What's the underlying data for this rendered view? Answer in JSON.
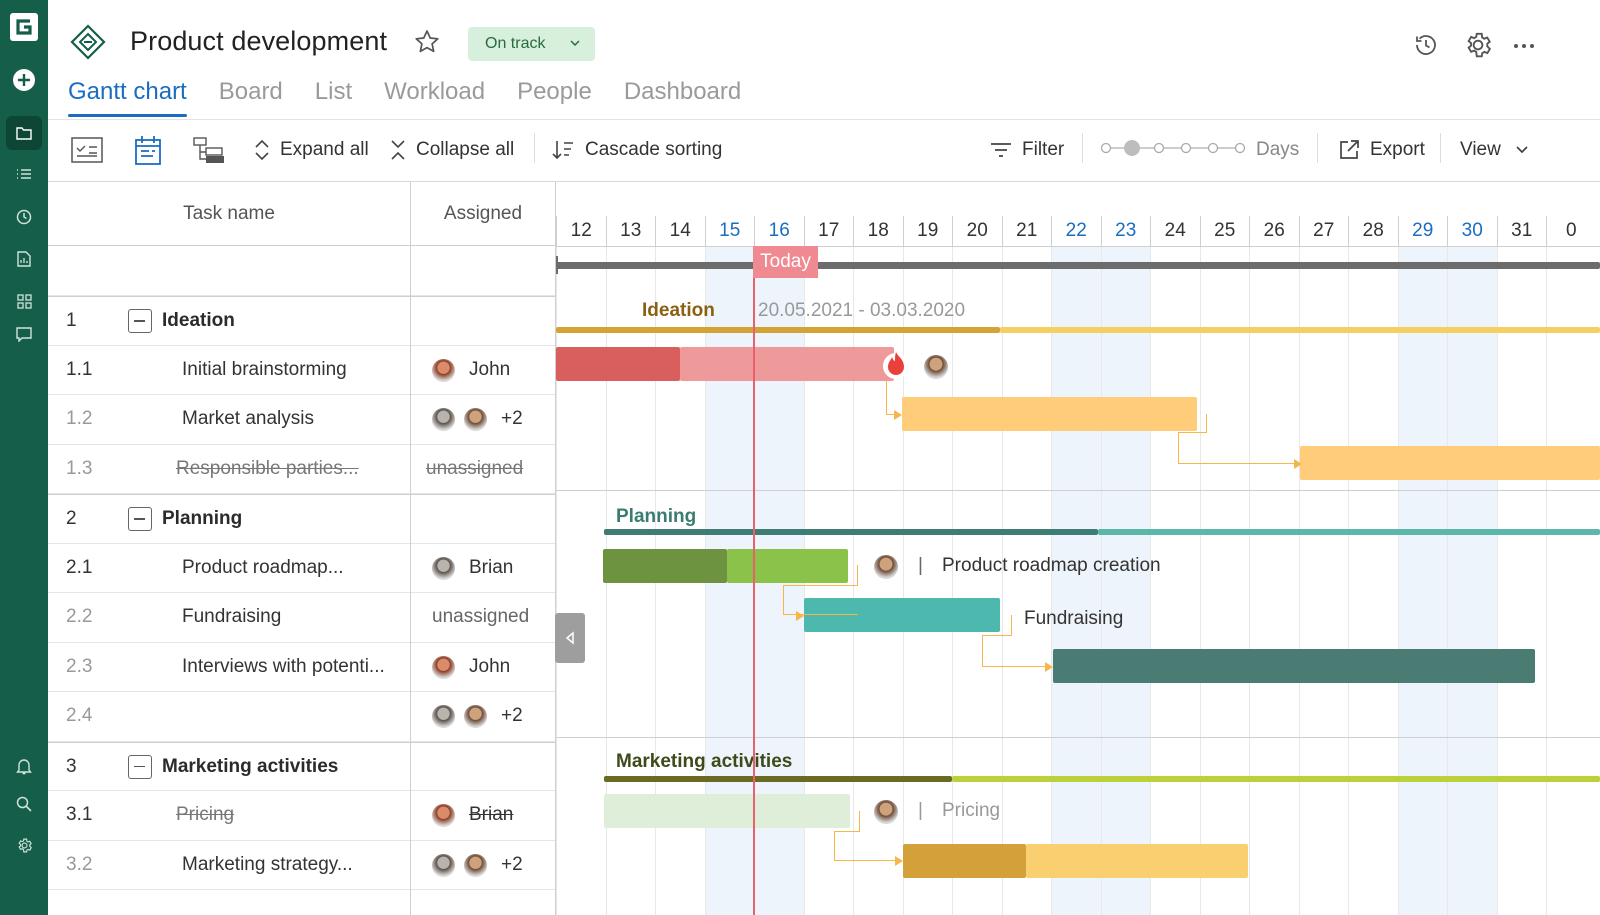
{
  "app": {
    "logo_letter": "G"
  },
  "header": {
    "title": "Product development",
    "status": "On track",
    "tabs": [
      {
        "label": "Gantt chart",
        "active": true
      },
      {
        "label": "Board"
      },
      {
        "label": "List"
      },
      {
        "label": "Workload"
      },
      {
        "label": "People"
      },
      {
        "label": "Dashboard"
      }
    ]
  },
  "toolbar": {
    "expand_all": "Expand all",
    "collapse_all": "Collapse all",
    "cascade_sorting": "Cascade sorting",
    "filter": "Filter",
    "zoom_label": "Days",
    "export": "Export",
    "view": "View"
  },
  "grid": {
    "col_task": "Task name",
    "col_assigned": "Assigned",
    "rows": [
      {
        "num": "1",
        "name": "Ideation",
        "group": true,
        "assigned": ""
      },
      {
        "num": "1.1",
        "name": "Initial brainstorming",
        "assigned": "John",
        "avatars": 1
      },
      {
        "num": "1.2",
        "name": "Market analysis",
        "assigned": "+2",
        "avatars": 2
      },
      {
        "num": "1.3",
        "name": "Responsible parties...",
        "assigned": "unassigned",
        "strike": true
      },
      {
        "num": "2",
        "name": "Planning",
        "group": true,
        "assigned": ""
      },
      {
        "num": "2.1",
        "name": "Product roadmap...",
        "assigned": "Brian",
        "avatars": 1
      },
      {
        "num": "2.2",
        "name": "Fundraising",
        "assigned": "unassigned"
      },
      {
        "num": "2.3",
        "name": "Interviews with potenti...",
        "assigned": "John",
        "avatars": 1
      },
      {
        "num": "2.4",
        "name": "",
        "assigned": "+2",
        "avatars": 2
      },
      {
        "num": "3",
        "name": "Marketing activities",
        "group": true,
        "assigned": ""
      },
      {
        "num": "3.1",
        "name": "Pricing",
        "assigned": "Brian",
        "avatars": 1,
        "strike": true
      },
      {
        "num": "3.2",
        "name": "Marketing strategy...",
        "assigned": "+2",
        "avatars": 2
      }
    ]
  },
  "timeline": {
    "days": [
      "12",
      "13",
      "14",
      "15",
      "16",
      "17",
      "18",
      "19",
      "20",
      "21",
      "22",
      "23",
      "24",
      "25",
      "26",
      "27",
      "28",
      "29",
      "30",
      "31",
      "0"
    ],
    "weekend_days": [
      "15",
      "16",
      "22",
      "23",
      "29",
      "30"
    ],
    "today_label": "Today",
    "ideation_label": "Ideation",
    "ideation_dates": "20.05.2021 - 03.03.2020",
    "planning_label": "Planning",
    "marketing_label": "Marketing activities",
    "roadmap_label": "Product roadmap creation",
    "fundraising_label": "Fundraising",
    "pricing_label": "Pricing",
    "separator": "|"
  },
  "colors": {
    "sidebar": "#155e49",
    "accent": "#1a6dc0",
    "today": "#e8606b"
  }
}
